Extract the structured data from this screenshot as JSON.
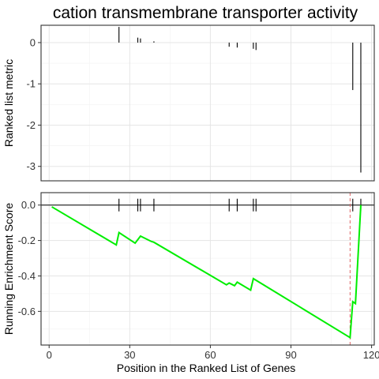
{
  "chart_data": [
    {
      "type": "bar",
      "panel": "top",
      "title": "cation transmembrane transporter activity",
      "ylabel": "Ranked list metric",
      "xlim": [
        -3,
        121
      ],
      "ylim": [
        -3.35,
        0.42
      ],
      "y_ticks": [
        0,
        -1,
        -2,
        -3
      ],
      "y_tick_labels": [
        "0",
        "-1",
        "-2",
        "-3"
      ],
      "grid": true,
      "values": [
        {
          "x": 26,
          "y": 0.38
        },
        {
          "x": 33,
          "y": 0.12
        },
        {
          "x": 34,
          "y": 0.1
        },
        {
          "x": 39,
          "y": 0.03
        },
        {
          "x": 67,
          "y": -0.1
        },
        {
          "x": 70,
          "y": -0.12
        },
        {
          "x": 76,
          "y": -0.15
        },
        {
          "x": 77,
          "y": -0.18
        },
        {
          "x": 113,
          "y": -1.15
        },
        {
          "x": 116,
          "y": -3.15
        }
      ]
    },
    {
      "type": "line",
      "panel": "bottom",
      "xlabel": "Position in the Ranked List of Genes",
      "ylabel": "Running Enrichment Score",
      "xlim": [
        -3,
        121
      ],
      "ylim": [
        -0.79,
        0.07
      ],
      "x_ticks": [
        0,
        30,
        60,
        90,
        120
      ],
      "x_tick_labels": [
        "0",
        "30",
        "60",
        "90",
        "120"
      ],
      "y_ticks": [
        0,
        -0.2,
        -0.4,
        -0.6
      ],
      "y_tick_labels": [
        "0.0",
        "-0.2",
        "-0.4",
        "-0.6"
      ],
      "grid": true,
      "line_color": "#00ee00",
      "hit_positions": [
        26,
        33,
        34,
        39,
        67,
        70,
        76,
        77,
        113,
        116
      ],
      "max_deviation_x": 112,
      "max_deviation_color": "#e06666",
      "series": [
        {
          "x": [
            1,
            25,
            26,
            31,
            32,
            33,
            34,
            38,
            39,
            66,
            67,
            69,
            70,
            75,
            76,
            112,
            113,
            114,
            116
          ],
          "y": [
            -0.01,
            -0.225,
            -0.155,
            -0.205,
            -0.215,
            -0.195,
            -0.175,
            -0.205,
            -0.21,
            -0.45,
            -0.44,
            -0.455,
            -0.435,
            -0.48,
            -0.415,
            -0.748,
            -0.545,
            -0.556,
            0.0
          ]
        }
      ]
    }
  ]
}
